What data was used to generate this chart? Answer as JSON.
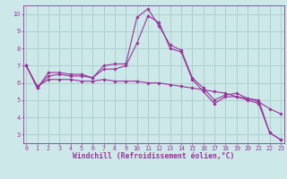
{
  "x": [
    0,
    1,
    2,
    3,
    4,
    5,
    6,
    7,
    8,
    9,
    10,
    11,
    12,
    13,
    14,
    15,
    16,
    17,
    18,
    19,
    20,
    21,
    22,
    23
  ],
  "line1": [
    7.0,
    5.7,
    6.6,
    6.6,
    6.5,
    6.5,
    6.3,
    6.8,
    6.8,
    7.0,
    8.3,
    9.9,
    9.5,
    8.0,
    7.8,
    6.2,
    5.5,
    4.8,
    5.2,
    5.2,
    5.0,
    4.8,
    3.1,
    2.7
  ],
  "line2": [
    7.0,
    5.7,
    6.4,
    6.5,
    6.4,
    6.4,
    6.3,
    7.0,
    7.1,
    7.1,
    9.8,
    10.3,
    9.3,
    8.2,
    7.9,
    6.3,
    5.7,
    5.0,
    5.3,
    5.4,
    5.1,
    5.0,
    3.1,
    2.7
  ],
  "line3": [
    7.0,
    5.8,
    6.2,
    6.2,
    6.2,
    6.1,
    6.1,
    6.2,
    6.1,
    6.1,
    6.1,
    6.0,
    6.0,
    5.9,
    5.8,
    5.7,
    5.6,
    5.5,
    5.4,
    5.2,
    5.1,
    4.9,
    4.5,
    4.2
  ],
  "line_color": "#993399",
  "bg_color": "#cce8e8",
  "grid_color": "#aacccc",
  "xlabel": "Windchill (Refroidissement éolien,°C)",
  "ylim": [
    2.5,
    10.5
  ],
  "yticks": [
    3,
    4,
    5,
    6,
    7,
    8,
    9,
    10
  ],
  "xlim": [
    -0.3,
    23.3
  ],
  "tick_fontsize": 4.8,
  "xlabel_fontsize": 5.8
}
